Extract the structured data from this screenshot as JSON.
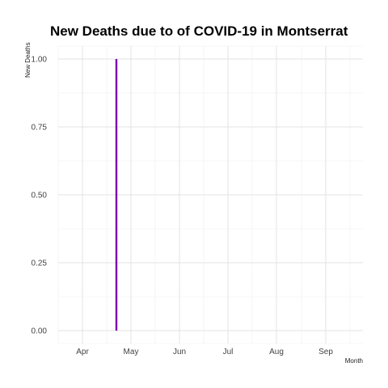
{
  "chart_data": {
    "type": "bar",
    "title": "New Deaths due to of COVID-19 in Montserrat",
    "xlabel": "Month",
    "ylabel": "New Deaths",
    "x_ticks": [
      "Apr",
      "May",
      "Jun",
      "Jul",
      "Aug",
      "Sep"
    ],
    "y_ticks": [
      "0.00",
      "0.25",
      "0.50",
      "0.75",
      "1.00"
    ],
    "ylim": [
      0,
      1
    ],
    "xlim": [
      "2020-03-17",
      "2020-10-02"
    ],
    "grid": true,
    "bar_color": "#7b00b4",
    "series": [
      {
        "values": [
          {
            "x": "2020-04-24",
            "y": 1
          }
        ]
      }
    ]
  }
}
